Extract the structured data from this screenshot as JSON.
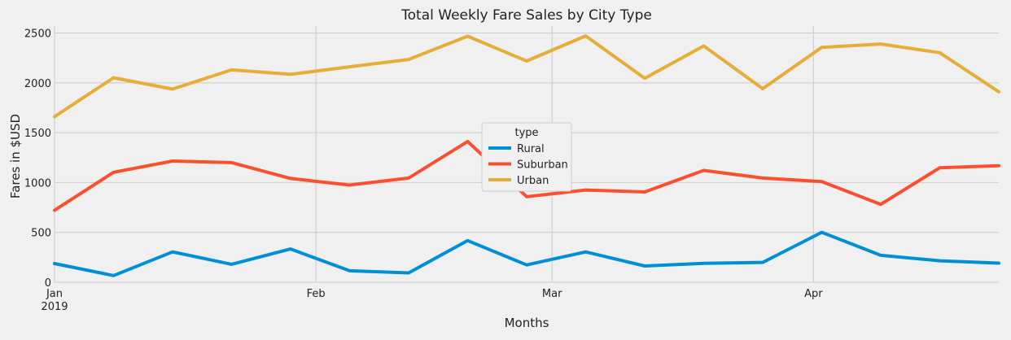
{
  "chart_data": {
    "type": "line",
    "title": "Total Weekly Fare Sales by City Type",
    "xlabel": "Months",
    "ylabel": "Fares in $USD",
    "x_tick_labels": [
      {
        "week": 0,
        "label": "Jan",
        "sub": "2019"
      },
      {
        "week": 4.43,
        "label": "Feb",
        "sub": ""
      },
      {
        "week": 8.43,
        "label": "Mar",
        "sub": ""
      },
      {
        "week": 12.86,
        "label": "Apr",
        "sub": ""
      }
    ],
    "x": [
      "2019-01-06",
      "2019-01-13",
      "2019-01-20",
      "2019-01-27",
      "2019-02-03",
      "2019-02-10",
      "2019-02-17",
      "2019-02-24",
      "2019-03-03",
      "2019-03-10",
      "2019-03-17",
      "2019-03-24",
      "2019-03-31",
      "2019-04-07",
      "2019-04-14",
      "2019-04-21",
      "2019-04-28"
    ],
    "yticks": [
      0,
      500,
      1000,
      1500,
      2000,
      2500
    ],
    "ylim": [
      0,
      2570
    ],
    "grid": true,
    "legend": {
      "title": "type",
      "placement": "center"
    },
    "series": [
      {
        "name": "Rural",
        "color": "#008fd5",
        "values": [
          188,
          67,
          304,
          180,
          334,
          115,
          94,
          418,
          174,
          304,
          163,
          189,
          199,
          501,
          270,
          215,
          192
        ]
      },
      {
        "name": "Suburban",
        "color": "#fc4f30",
        "values": [
          722,
          1103,
          1216,
          1200,
          1041,
          975,
          1045,
          1412,
          858,
          925,
          906,
          1122,
          1045,
          1010,
          782,
          1149,
          1169
        ]
      },
      {
        "name": "Urban",
        "color": "#e5ae38",
        "values": [
          1661,
          2051,
          1938,
          2130,
          2085,
          2161,
          2235,
          2468,
          2219,
          2471,
          2045,
          2370,
          1942,
          2356,
          2390,
          2302,
          1910
        ]
      }
    ]
  }
}
